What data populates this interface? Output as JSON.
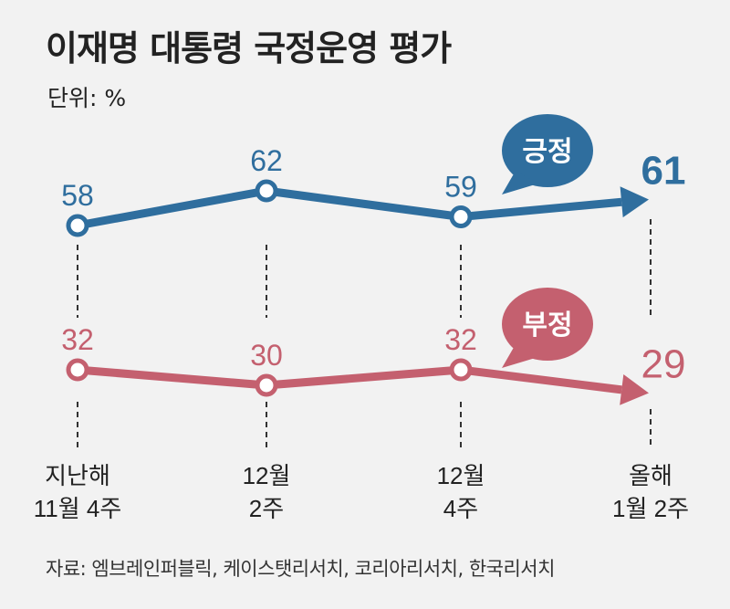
{
  "title": "이재명 대통령 국정운영 평가",
  "unit": "단위: %",
  "source": "자료: 엠브레인퍼블릭, 케이스탯리서치, 코리아리서치, 한국리서치",
  "chart_data": {
    "type": "line",
    "title": "이재명 대통령 국정운영 평가",
    "categories": [
      [
        "지난해",
        "11월 4주"
      ],
      [
        "12월",
        "2주"
      ],
      [
        "12월",
        "4주"
      ],
      [
        "올해",
        "1월 2주"
      ]
    ],
    "series": [
      {
        "name": "긍정",
        "values": [
          58,
          62,
          59,
          61
        ],
        "color": "#2f6e9e"
      },
      {
        "name": "부정",
        "values": [
          32,
          30,
          32,
          29
        ],
        "color": "#c4606f"
      }
    ],
    "ylabel": "단위: %",
    "legend": "speech-bubble labels near series ends",
    "grid": false
  }
}
